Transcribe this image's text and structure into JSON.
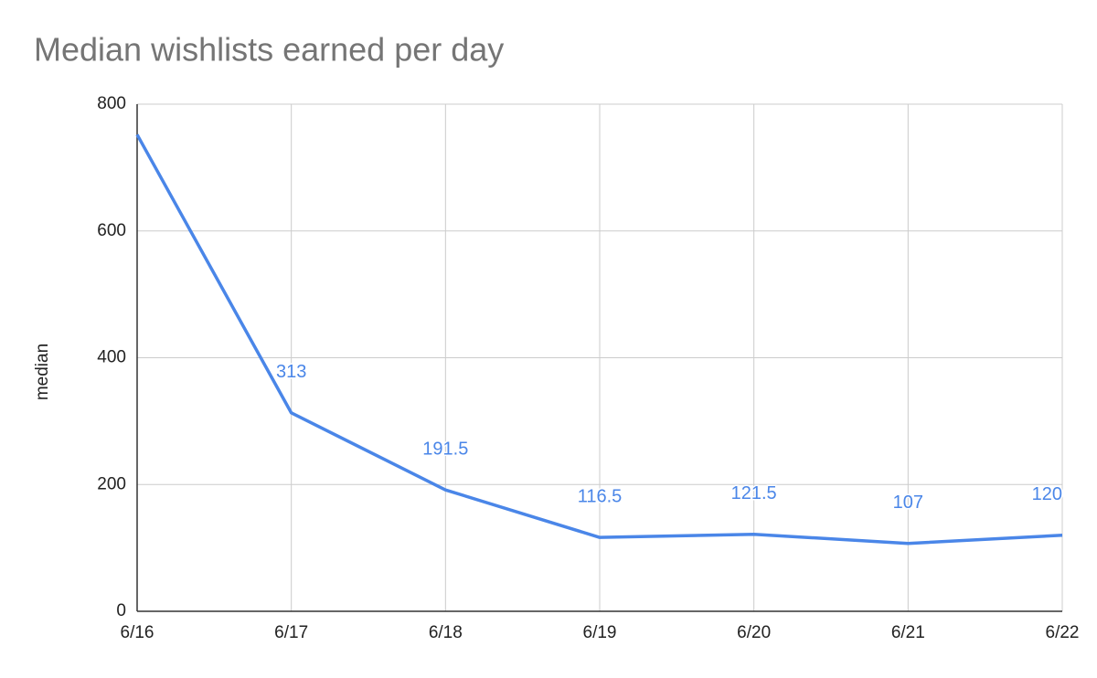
{
  "chart_data": {
    "type": "line",
    "title": "Median wishlists earned per day",
    "y_label": "median",
    "categories": [
      "6/16",
      "6/17",
      "6/18",
      "6/19",
      "6/20",
      "6/21",
      "6/22"
    ],
    "series": [
      {
        "name": "median",
        "color": "#4a86e8",
        "values": [
          752,
          313,
          191.5,
          116.5,
          121.5,
          107,
          120
        ],
        "value_labels": [
          null,
          "313",
          "191.5",
          "116.5",
          "121.5",
          "107",
          "120"
        ]
      }
    ],
    "ylim": [
      0,
      800
    ],
    "yticks": [
      0,
      200,
      400,
      600,
      800
    ],
    "grid": true,
    "legend": false
  }
}
